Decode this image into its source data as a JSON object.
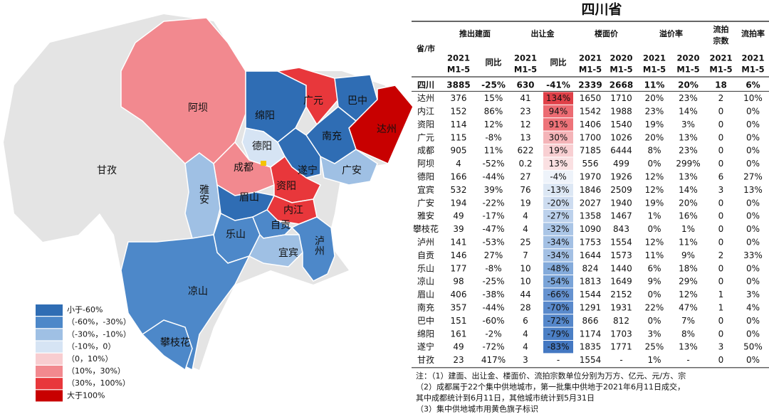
{
  "map": {
    "regions": [
      {
        "name": "甘孜"
      },
      {
        "name": "阿坝"
      },
      {
        "name": "绵阳"
      },
      {
        "name": "广元"
      },
      {
        "name": "巴中"
      },
      {
        "name": "达州"
      },
      {
        "name": "南充"
      },
      {
        "name": "德阳"
      },
      {
        "name": "成都"
      },
      {
        "name": "遂宁"
      },
      {
        "name": "广安"
      },
      {
        "name": "资阳"
      },
      {
        "name": "内江"
      },
      {
        "name": "雅安"
      },
      {
        "name": "眉山"
      },
      {
        "name": "乐山"
      },
      {
        "name": "自贡"
      },
      {
        "name": "宜宾"
      },
      {
        "name": "泸州"
      },
      {
        "name": "凉山"
      },
      {
        "name": "攀枝花"
      }
    ],
    "legend": [
      {
        "label": "小于-60%",
        "color": "#2f6db4"
      },
      {
        "label": "（-60%，-30%）",
        "color": "#4d88c9"
      },
      {
        "label": "（-30%，-10%）",
        "color": "#9fc0e4"
      },
      {
        "label": "（-10%，0）",
        "color": "#d6e4f4"
      },
      {
        "label": "（0，10%）",
        "color": "#f8cdd0"
      },
      {
        "label": "（10%，30%）",
        "color": "#f2898f"
      },
      {
        "label": "（30%，100%）",
        "color": "#e8373b"
      },
      {
        "label": "大于100%",
        "color": "#c80000"
      }
    ]
  },
  "table": {
    "title": "四川省",
    "corner": "省/市",
    "groups": [
      {
        "label": "推出建面",
        "span": 2
      },
      {
        "label": "出让金",
        "span": 2
      },
      {
        "label": "楼面价",
        "span": 2
      },
      {
        "label": "溢价率",
        "span": 2
      },
      {
        "label": [
          "流拍",
          "宗数"
        ],
        "span": 1
      },
      {
        "label": "流拍率",
        "span": 1
      }
    ],
    "subheaders": [
      [
        "2021",
        "M1-5"
      ],
      [
        "同比"
      ],
      [
        "2021",
        "M1-5"
      ],
      [
        "同比"
      ],
      [
        "2021",
        "M1-5"
      ],
      [
        "2020",
        "M1-5"
      ],
      [
        "2021",
        "M1-5"
      ],
      [
        "2020",
        "M1-5"
      ],
      [
        "2021",
        "M1-5"
      ],
      [
        "2021",
        "M1-5"
      ]
    ],
    "rows": [
      [
        "四川",
        "3885",
        "-25%",
        "630",
        "-41%",
        "2339",
        "2668",
        "11%",
        "20%",
        "18",
        "6%"
      ],
      [
        "达州",
        "376",
        "15%",
        "41",
        "134%",
        "1650",
        "1710",
        "20%",
        "23%",
        "2",
        "10%"
      ],
      [
        "内江",
        "152",
        "86%",
        "23",
        "94%",
        "1542",
        "1988",
        "23%",
        "14%",
        "0",
        "0%"
      ],
      [
        "资阳",
        "114",
        "12%",
        "12",
        "91%",
        "1406",
        "1540",
        "19%",
        "3%",
        "0",
        "0%"
      ],
      [
        "广元",
        "115",
        "-8%",
        "13",
        "30%",
        "1700",
        "1026",
        "20%",
        "13%",
        "0",
        "0%"
      ],
      [
        "成都",
        "905",
        "11%",
        "622",
        "19%",
        "7185",
        "6444",
        "8%",
        "23%",
        "0",
        "0%"
      ],
      [
        "阿坝",
        "4",
        "-52%",
        "0.2",
        "13%",
        "556",
        "499",
        "0%",
        "299%",
        "0",
        "0%"
      ],
      [
        "德阳",
        "166",
        "-44%",
        "27",
        "-4%",
        "1970",
        "1926",
        "12%",
        "13%",
        "6",
        "27%"
      ],
      [
        "宜宾",
        "532",
        "39%",
        "76",
        "-13%",
        "1846",
        "2509",
        "12%",
        "14%",
        "3",
        "13%"
      ],
      [
        "广安",
        "194",
        "-22%",
        "19",
        "-20%",
        "2027",
        "1940",
        "19%",
        "20%",
        "0",
        "0%"
      ],
      [
        "雅安",
        "49",
        "-17%",
        "4",
        "-27%",
        "1358",
        "1467",
        "1%",
        "16%",
        "0",
        "0%"
      ],
      [
        "攀枝花",
        "39",
        "-47%",
        "4",
        "-32%",
        "1090",
        "843",
        "0%",
        "1%",
        "0",
        "0%"
      ],
      [
        "泸州",
        "141",
        "-53%",
        "25",
        "-34%",
        "1753",
        "1554",
        "12%",
        "11%",
        "0",
        "0%"
      ],
      [
        "自贡",
        "146",
        "27%",
        "7",
        "-34%",
        "1644",
        "1573",
        "11%",
        "9%",
        "2",
        "33%"
      ],
      [
        "乐山",
        "177",
        "-8%",
        "10",
        "-48%",
        "824",
        "1440",
        "6%",
        "18%",
        "0",
        "0%"
      ],
      [
        "凉山",
        "98",
        "-25%",
        "10",
        "-54%",
        "1813",
        "1649",
        "9%",
        "29%",
        "0",
        "0%"
      ],
      [
        "眉山",
        "406",
        "-38%",
        "44",
        "-66%",
        "1544",
        "2152",
        "0%",
        "12%",
        "1",
        "3%"
      ],
      [
        "南充",
        "357",
        "-44%",
        "28",
        "-70%",
        "1291",
        "1931",
        "22%",
        "47%",
        "1",
        "4%"
      ],
      [
        "巴中",
        "151",
        "-60%",
        "6",
        "-72%",
        "866",
        "812",
        "0%",
        "7%",
        "0",
        "0%"
      ],
      [
        "绵阳",
        "161",
        "-2%",
        "4",
        "-79%",
        "1174",
        "1703",
        "3%",
        "8%",
        "0",
        "0%"
      ],
      [
        "遂宁",
        "49",
        "-72%",
        "4",
        "-83%",
        "1835",
        "1771",
        "25%",
        "13%",
        "3",
        "50%"
      ],
      [
        "甘孜",
        "23",
        "417%",
        "3",
        "-",
        "1554",
        "-",
        "1%",
        "-",
        "0",
        "0%"
      ]
    ],
    "heat": [
      null,
      "#e04048",
      "#ec6b72",
      "#ee7379",
      "#f4b4b8",
      "#f8cfd2",
      "#fae0e2",
      "#eef3fa",
      "#dce7f4",
      "#cddcf0",
      "#bcd1ec",
      "#aac5e6",
      "#a3c0e4",
      "#a3c0e4",
      "#84abdb",
      "#7aa4d8",
      "#6592d0",
      "#5a8acc",
      "#5587ca",
      "#4b7fc5",
      "#4478c2",
      null
    ]
  },
  "notes": [
    "注：（1）建面、出让金、楼面价、流拍宗数单位分别为万方、亿元、元/方、宗",
    "（2）成都属于22个集中供地城市，第一批集中供地于2021年6月11日成交，",
    "其中成都统计到6月11日，其他城市统计到5月31日",
    "（3）集中供地城市用黄色旗子标识"
  ]
}
